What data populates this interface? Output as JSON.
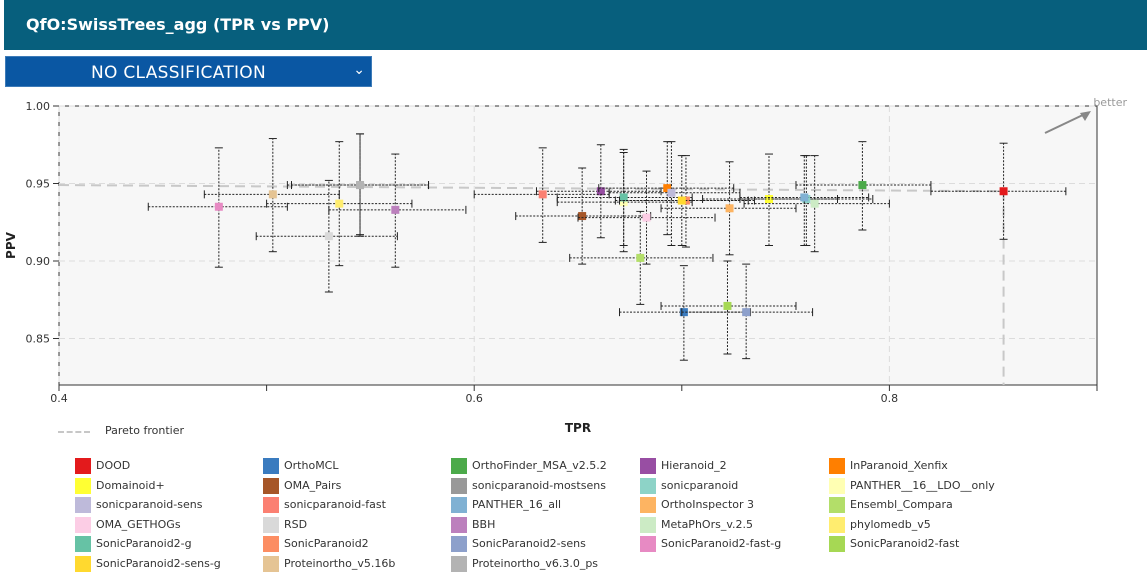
{
  "header": {
    "title": "QfO:SwissTrees_agg (TPR vs PPV)"
  },
  "classification_select": {
    "value": "NO CLASSIFICATION"
  },
  "pareto_label": "Pareto frontier",
  "better_label": "better",
  "chart_data": {
    "type": "scatter",
    "xlabel": "TPR",
    "ylabel": "PPV",
    "xlim": [
      0.4,
      0.9
    ],
    "ylim": [
      0.82,
      1.0
    ],
    "xticks": [
      "0.4",
      "0.6",
      "0.8"
    ],
    "yticks": [
      "0.85",
      "0.90",
      "0.95",
      "1.00"
    ],
    "grid": true,
    "legend_position": "bottom",
    "pareto_frontier": [
      [
        0.4,
        0.949
      ],
      [
        0.855,
        0.945
      ],
      [
        0.855,
        0.82
      ]
    ],
    "series": [
      {
        "name": "DOOD",
        "color": "#e31a1c",
        "x": 0.855,
        "y": 0.945,
        "xerr": [
          0.82,
          0.885
        ],
        "yerr": [
          0.914,
          0.976
        ]
      },
      {
        "name": "OrthoMCL",
        "color": "#3a7bbf",
        "x": 0.701,
        "y": 0.867,
        "xerr": [
          0.67,
          0.733
        ],
        "yerr": [
          0.836,
          0.897
        ]
      },
      {
        "name": "OrthoFinder_MSA_v2.5.2",
        "color": "#4caa4a",
        "x": 0.787,
        "y": 0.949,
        "xerr": [
          0.755,
          0.82
        ],
        "yerr": [
          0.92,
          0.977
        ]
      },
      {
        "name": "Hieranoid_2",
        "color": "#984ea3",
        "x": 0.661,
        "y": 0.945,
        "xerr": [
          0.63,
          0.69
        ],
        "yerr": [
          0.915,
          0.975
        ]
      },
      {
        "name": "InParanoid_Xenfix",
        "color": "#ff7f00",
        "x": 0.693,
        "y": 0.947,
        "xerr": [
          0.66,
          0.725
        ],
        "yerr": [
          0.917,
          0.977
        ]
      },
      {
        "name": "Domainoid+",
        "color": "#ffff33",
        "x": 0.742,
        "y": 0.94,
        "xerr": [
          0.71,
          0.775
        ],
        "yerr": [
          0.91,
          0.969
        ]
      },
      {
        "name": "OMA_Pairs",
        "color": "#a65628",
        "x": 0.652,
        "y": 0.929,
        "xerr": [
          0.62,
          0.685
        ],
        "yerr": [
          0.898,
          0.96
        ]
      },
      {
        "name": "sonicparanoid-mostsens",
        "color": "#999999",
        "x": 0.545,
        "y": 0.949,
        "xerr": [
          0.51,
          0.578
        ],
        "yerr": [
          0.916,
          0.982
        ]
      },
      {
        "name": "sonicparanoid",
        "color": "#8dd3c7",
        "x": 0.76,
        "y": 0.94,
        "xerr": [
          0.728,
          0.792
        ],
        "yerr": [
          0.91,
          0.968
        ]
      },
      {
        "name": "PANTHER__16__LDO__only",
        "color": "#ffffb3",
        "x": 0.672,
        "y": 0.938,
        "xerr": [
          0.64,
          0.705
        ],
        "yerr": [
          0.906,
          0.97
        ]
      },
      {
        "name": "sonicparanoid-sens",
        "color": "#bebada",
        "x": 0.695,
        "y": 0.944,
        "xerr": [
          0.665,
          0.728
        ],
        "yerr": [
          0.91,
          0.977
        ]
      },
      {
        "name": "sonicparanoid-fast",
        "color": "#fb8072",
        "x": 0.633,
        "y": 0.943,
        "xerr": [
          0.6,
          0.665
        ],
        "yerr": [
          0.912,
          0.973
        ]
      },
      {
        "name": "PANTHER_16_all",
        "color": "#80b1d3",
        "x": 0.759,
        "y": 0.941,
        "xerr": [
          0.728,
          0.79
        ],
        "yerr": [
          0.91,
          0.968
        ]
      },
      {
        "name": "OrthoInspector 3",
        "color": "#fdb462",
        "x": 0.723,
        "y": 0.934,
        "xerr": [
          0.69,
          0.755
        ],
        "yerr": [
          0.904,
          0.964
        ]
      },
      {
        "name": "Ensembl_Compara",
        "color": "#b3de69",
        "x": 0.68,
        "y": 0.902,
        "xerr": [
          0.646,
          0.715
        ],
        "yerr": [
          0.872,
          0.932
        ]
      },
      {
        "name": "OMA_GETHOGs",
        "color": "#fccde5",
        "x": 0.683,
        "y": 0.928,
        "xerr": [
          0.65,
          0.716
        ],
        "yerr": [
          0.898,
          0.958
        ]
      },
      {
        "name": "RSD",
        "color": "#d9d9d9",
        "x": 0.53,
        "y": 0.916,
        "xerr": [
          0.495,
          0.563
        ],
        "yerr": [
          0.88,
          0.952
        ]
      },
      {
        "name": "BBH",
        "color": "#bc80bd",
        "x": 0.562,
        "y": 0.933,
        "xerr": [
          0.53,
          0.596
        ],
        "yerr": [
          0.896,
          0.969
        ]
      },
      {
        "name": "MetaPhOrs_v.2.5",
        "color": "#ccebc5",
        "x": 0.764,
        "y": 0.937,
        "xerr": [
          0.73,
          0.8
        ],
        "yerr": [
          0.906,
          0.968
        ]
      },
      {
        "name": "phylomedb_v5",
        "color": "#ffed6f",
        "x": 0.535,
        "y": 0.937,
        "xerr": [
          0.5,
          0.57
        ],
        "yerr": [
          0.897,
          0.977
        ]
      },
      {
        "name": "SonicParanoid2-g",
        "color": "#66c2a5",
        "x": 0.672,
        "y": 0.941,
        "xerr": [
          0.64,
          0.705
        ],
        "yerr": [
          0.91,
          0.972
        ]
      },
      {
        "name": "SonicParanoid2",
        "color": "#fc8d62",
        "x": 0.702,
        "y": 0.939,
        "xerr": [
          0.67,
          0.735
        ],
        "yerr": [
          0.909,
          0.968
        ]
      },
      {
        "name": "SonicParanoid2-sens",
        "color": "#8da0cb",
        "x": 0.731,
        "y": 0.867,
        "xerr": [
          0.7,
          0.763
        ],
        "yerr": [
          0.837,
          0.898
        ]
      },
      {
        "name": "SonicParanoid2-fast-g",
        "color": "#e78ac3",
        "x": 0.477,
        "y": 0.935,
        "xerr": [
          0.443,
          0.51
        ],
        "yerr": [
          0.896,
          0.973
        ]
      },
      {
        "name": "SonicParanoid2-fast",
        "color": "#a6d854",
        "x": 0.722,
        "y": 0.871,
        "xerr": [
          0.69,
          0.755
        ],
        "yerr": [
          0.84,
          0.9
        ]
      },
      {
        "name": "SonicParanoid2-sens-g",
        "color": "#ffd92f",
        "x": 0.7,
        "y": 0.939,
        "xerr": [
          0.668,
          0.732
        ],
        "yerr": [
          0.91,
          0.968
        ]
      },
      {
        "name": "Proteinortho_v5.16b",
        "color": "#e5c494",
        "x": 0.503,
        "y": 0.943,
        "xerr": [
          0.47,
          0.535
        ],
        "yerr": [
          0.906,
          0.979
        ]
      },
      {
        "name": "Proteinortho_v6.3.0_ps",
        "color": "#b3b3b3",
        "x": 0.545,
        "y": 0.949,
        "xerr": [
          0.512,
          0.578
        ],
        "yerr": [
          0.917,
          0.982
        ]
      }
    ]
  }
}
